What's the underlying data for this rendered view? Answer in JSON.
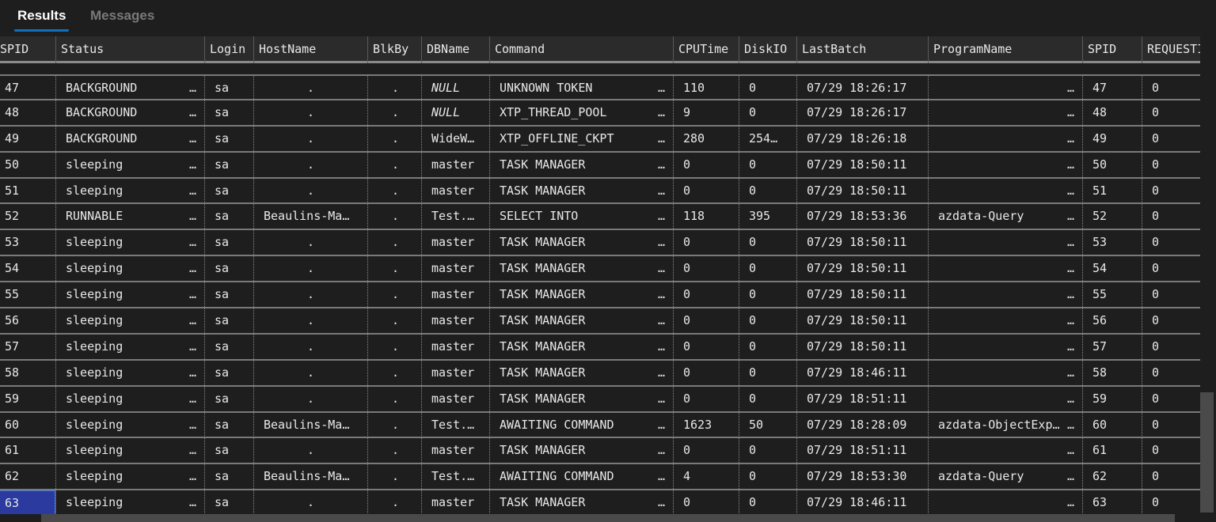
{
  "tabs": [
    {
      "label": "Results",
      "active": true
    },
    {
      "label": "Messages",
      "active": false
    }
  ],
  "columns": [
    "SPID",
    "Status",
    "Login",
    "HostName",
    "BlkBy",
    "DBName",
    "Command",
    "CPUTime",
    "DiskIO",
    "LastBatch",
    "ProgramName",
    "SPID",
    "REQUESTID"
  ],
  "rows": [
    [
      "47",
      "BACKGROUND",
      "sa",
      ".",
      ".",
      "NULL",
      "UNKNOWN TOKEN",
      "110",
      "0",
      "07/29 18:26:17",
      "",
      "47",
      "0"
    ],
    [
      "48",
      "BACKGROUND",
      "sa",
      ".",
      ".",
      "NULL",
      "XTP_THREAD_POOL",
      "9",
      "0",
      "07/29 18:26:17",
      "",
      "48",
      "0"
    ],
    [
      "49",
      "BACKGROUND",
      "sa",
      ".",
      ".",
      "WideW…",
      "XTP_OFFLINE_CKPT",
      "280",
      "254…",
      "07/29 18:26:18",
      "",
      "49",
      "0"
    ],
    [
      "50",
      "sleeping",
      "sa",
      ".",
      ".",
      "master",
      "TASK MANAGER",
      "0",
      "0",
      "07/29 18:50:11",
      "",
      "50",
      "0"
    ],
    [
      "51",
      "sleeping",
      "sa",
      ".",
      ".",
      "master",
      "TASK MANAGER",
      "0",
      "0",
      "07/29 18:50:11",
      "",
      "51",
      "0"
    ],
    [
      "52",
      "RUNNABLE",
      "sa",
      "Beaulins-Ma…",
      ".",
      "Test.…",
      "SELECT INTO",
      "118",
      "395",
      "07/29 18:53:36",
      "azdata-Query",
      "52",
      "0"
    ],
    [
      "53",
      "sleeping",
      "sa",
      ".",
      ".",
      "master",
      "TASK MANAGER",
      "0",
      "0",
      "07/29 18:50:11",
      "",
      "53",
      "0"
    ],
    [
      "54",
      "sleeping",
      "sa",
      ".",
      ".",
      "master",
      "TASK MANAGER",
      "0",
      "0",
      "07/29 18:50:11",
      "",
      "54",
      "0"
    ],
    [
      "55",
      "sleeping",
      "sa",
      ".",
      ".",
      "master",
      "TASK MANAGER",
      "0",
      "0",
      "07/29 18:50:11",
      "",
      "55",
      "0"
    ],
    [
      "56",
      "sleeping",
      "sa",
      ".",
      ".",
      "master",
      "TASK MANAGER",
      "0",
      "0",
      "07/29 18:50:11",
      "",
      "56",
      "0"
    ],
    [
      "57",
      "sleeping",
      "sa",
      ".",
      ".",
      "master",
      "TASK MANAGER",
      "0",
      "0",
      "07/29 18:50:11",
      "",
      "57",
      "0"
    ],
    [
      "58",
      "sleeping",
      "sa",
      ".",
      ".",
      "master",
      "TASK MANAGER",
      "0",
      "0",
      "07/29 18:46:11",
      "",
      "58",
      "0"
    ],
    [
      "59",
      "sleeping",
      "sa",
      ".",
      ".",
      "master",
      "TASK MANAGER",
      "0",
      "0",
      "07/29 18:51:11",
      "",
      "59",
      "0"
    ],
    [
      "60",
      "sleeping",
      "sa",
      "Beaulins-Ma…",
      ".",
      "Test.…",
      "AWAITING COMMAND",
      "1623",
      "50",
      "07/29 18:28:09",
      "azdata-ObjectExp…",
      "60",
      "0"
    ],
    [
      "61",
      "sleeping",
      "sa",
      ".",
      ".",
      "master",
      "TASK MANAGER",
      "0",
      "0",
      "07/29 18:51:11",
      "",
      "61",
      "0"
    ],
    [
      "62",
      "sleeping",
      "sa",
      "Beaulins-Ma…",
      ".",
      "Test.…",
      "AWAITING COMMAND",
      "4",
      "0",
      "07/29 18:53:30",
      "azdata-Query",
      "62",
      "0"
    ],
    [
      "63",
      "sleeping",
      "sa",
      ".",
      ".",
      "master",
      "TASK MANAGER",
      "0",
      "0",
      "07/29 18:46:11",
      "",
      "63",
      "0"
    ]
  ],
  "truncation_marker": "…",
  "selected_cell": {
    "row": "63",
    "column": "SPID"
  },
  "colors": {
    "background": "#1e1e1e",
    "header": "#2b2b2b",
    "tab_accent": "#0e70c0",
    "selection": "#2a3a9e"
  }
}
